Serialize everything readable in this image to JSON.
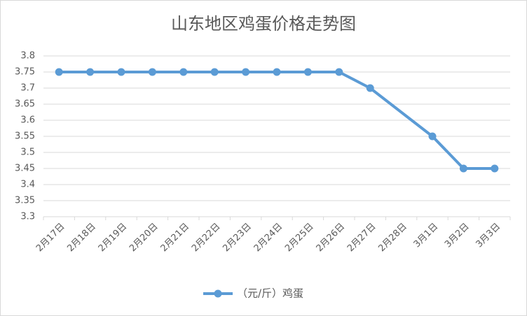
{
  "chart_data": {
    "type": "line",
    "title": "山东地区鸡蛋价格走势图",
    "categories": [
      "2月17日",
      "2月18日",
      "2月19日",
      "2月20日",
      "2月21日",
      "2月22日",
      "2月23日",
      "2月24日",
      "2月25日",
      "2月26日",
      "2月27日",
      "2月28日",
      "3月1日",
      "3月2日",
      "3月3日"
    ],
    "series": [
      {
        "name": "（元/斤）鸡蛋",
        "color": "#5b9bd5",
        "values": [
          3.75,
          3.75,
          3.75,
          3.75,
          3.75,
          3.75,
          3.75,
          3.75,
          3.75,
          3.75,
          3.7,
          null,
          3.55,
          3.45,
          3.45
        ]
      }
    ],
    "ylim": [
      3.3,
      3.8
    ],
    "yticks": [
      3.3,
      3.35,
      3.4,
      3.45,
      3.5,
      3.55,
      3.6,
      3.65,
      3.7,
      3.75,
      3.8
    ],
    "grid": true,
    "legend": "bottom",
    "connect_gaps": true
  }
}
